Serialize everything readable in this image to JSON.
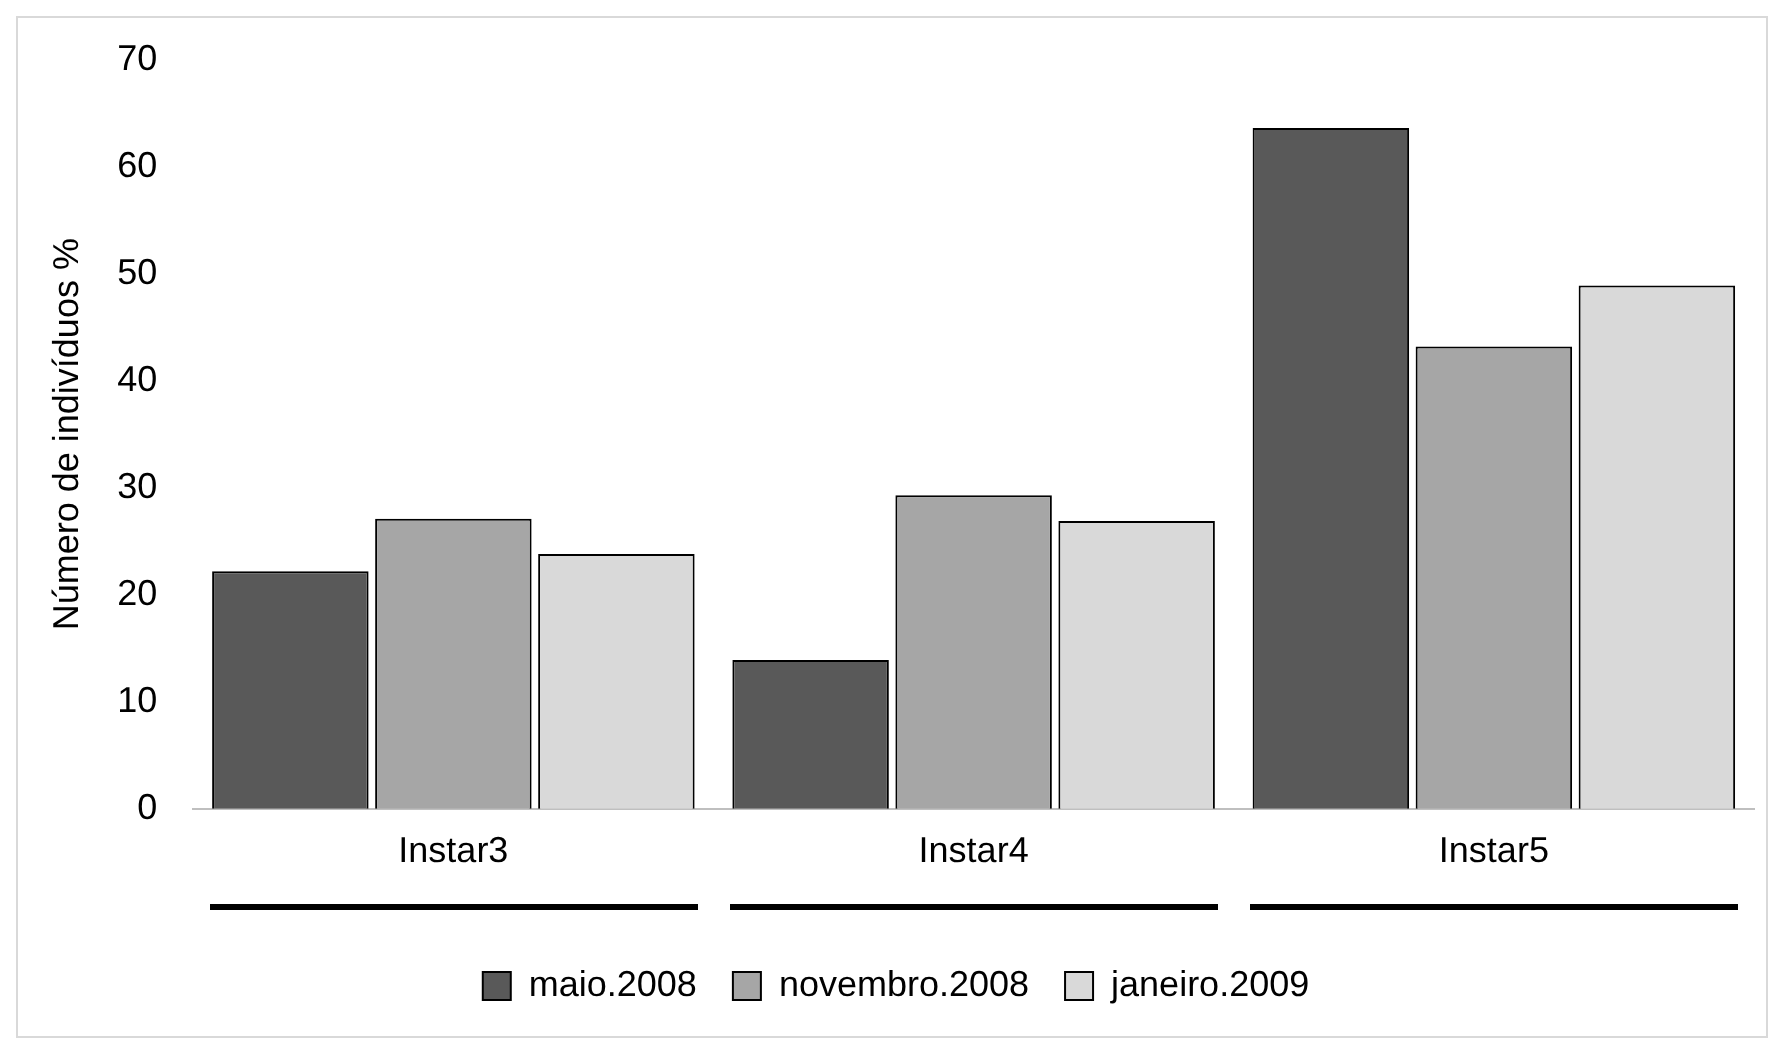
{
  "chart_data": {
    "type": "bar",
    "ylabel": "Número de indivíduos %",
    "categories": [
      "Instar3",
      "Instar4",
      "Instar5"
    ],
    "series": [
      {
        "name": "maio.2008",
        "color": "#595959",
        "values": [
          22.2,
          13.9,
          63.6
        ]
      },
      {
        "name": "novembro.2008",
        "color": "#a6a6a6",
        "values": [
          27.1,
          29.3,
          43.2
        ]
      },
      {
        "name": "janeiro.2009",
        "color": "#d9d9d9",
        "values": [
          23.8,
          26.9,
          48.9
        ]
      }
    ],
    "ylim": [
      0,
      70
    ],
    "yticks": [
      0,
      10,
      20,
      30,
      40,
      50,
      60,
      70
    ],
    "grid": false,
    "legend": "bottom"
  }
}
